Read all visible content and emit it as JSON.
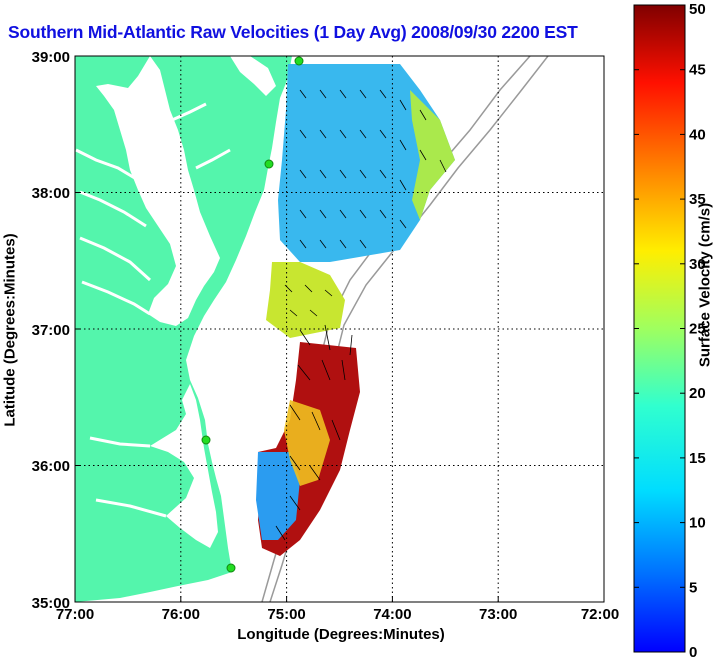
{
  "title": "Southern Mid-Atlantic Raw Velocities (1 Day Avg) 2008/09/30 2200 EST",
  "axes": {
    "xlabel": "Longitude (Degrees:Minutes)",
    "ylabel": "Latitude (Degrees:Minutes)",
    "x_ticks": [
      "77:00",
      "76:00",
      "75:00",
      "74:00",
      "73:00",
      "72:00"
    ],
    "y_ticks": [
      "39:00",
      "38:00",
      "37:00",
      "36:00",
      "35:00"
    ],
    "x_range_deg_west": [
      77,
      72
    ],
    "y_range_deg_north": [
      35,
      39
    ],
    "grid": "dotted"
  },
  "colorbar": {
    "label": "Surface Velocity (cm/s)",
    "ticks": [
      "0",
      "5",
      "10",
      "15",
      "20",
      "25",
      "30",
      "35",
      "40",
      "45",
      "50"
    ],
    "range": [
      0,
      50
    ],
    "colormap": "jet"
  },
  "colors": {
    "land": "#54f5ac",
    "water": "#ffffff",
    "isobath": "#9a9a9a",
    "radar_site": "#22dd22",
    "title": "#1010e0"
  },
  "chart_data": {
    "type": "heatmap",
    "title": "Southern Mid-Atlantic Raw Velocities (1 Day Avg) 2008/09/30 2200 EST",
    "xlabel": "Longitude (Degrees:Minutes)",
    "ylabel": "Latitude (Degrees:Minutes)",
    "colorbar_label": "Surface Velocity (cm/s)",
    "regions": [
      {
        "lon_w": [
          75.1,
          73.6
        ],
        "lat_n": [
          37.5,
          38.95
        ],
        "speed_cm_s": [
          5,
          27
        ],
        "dominant": "blue to cyan, yellow on eastern edge"
      },
      {
        "lon_w": [
          75.2,
          74.5
        ],
        "lat_n": [
          36.95,
          37.45
        ],
        "speed_cm_s": [
          10,
          30
        ],
        "dominant": "yellow-green"
      },
      {
        "lon_w": [
          75.25,
          74.4
        ],
        "lat_n": [
          35.25,
          36.6
        ],
        "speed_cm_s": [
          5,
          50
        ],
        "dominant": "red-brown on shelf edge, blue inshore"
      }
    ],
    "radar_sites": [
      {
        "lon_w": 74.9,
        "lat_n": 38.95
      },
      {
        "lon_w": 75.15,
        "lat_n": 38.2
      },
      {
        "lon_w": 75.8,
        "lat_n": 36.15
      },
      {
        "lon_w": 75.5,
        "lat_n": 35.25
      }
    ]
  }
}
